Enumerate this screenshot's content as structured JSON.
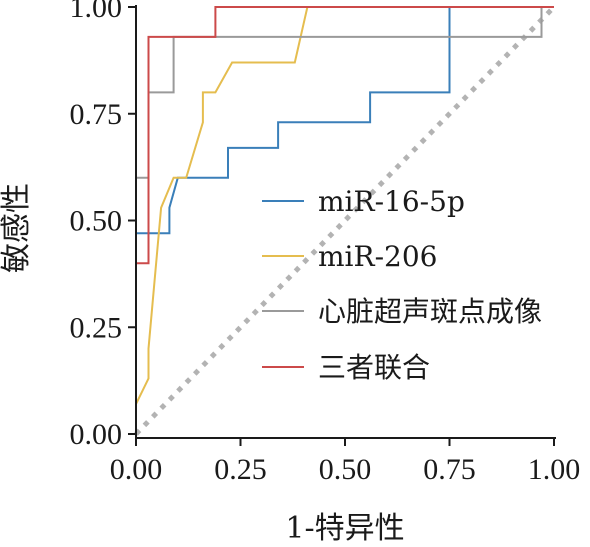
{
  "chart_data": {
    "type": "line",
    "title": "",
    "xlabel": "1-特异性",
    "ylabel": "敏感性",
    "xlim": [
      0,
      1
    ],
    "ylim": [
      0,
      1
    ],
    "xticks": [
      "0.00",
      "0.25",
      "0.50",
      "0.75",
      "1.00"
    ],
    "yticks": [
      "0.00",
      "0.25",
      "0.50",
      "0.75",
      "1.00"
    ],
    "legend_position": "center-right",
    "grid": false,
    "reference_line": {
      "style": "dotted",
      "color": "#b3b3b3",
      "points": [
        [
          0,
          0
        ],
        [
          1,
          1
        ]
      ]
    },
    "series": [
      {
        "name": "miR-16-5p",
        "color": "#3a7fb9",
        "points": [
          [
            0,
            0.47
          ],
          [
            0.08,
            0.47
          ],
          [
            0.08,
            0.53
          ],
          [
            0.1,
            0.6
          ],
          [
            0.22,
            0.6
          ],
          [
            0.22,
            0.67
          ],
          [
            0.34,
            0.67
          ],
          [
            0.34,
            0.73
          ],
          [
            0.56,
            0.73
          ],
          [
            0.56,
            0.8
          ],
          [
            0.75,
            0.8
          ],
          [
            0.75,
            1.0
          ],
          [
            1.0,
            1.0
          ]
        ]
      },
      {
        "name": "miR-206",
        "color": "#e5bd4f",
        "points": [
          [
            0,
            0.07
          ],
          [
            0.03,
            0.13
          ],
          [
            0.03,
            0.2
          ],
          [
            0.06,
            0.53
          ],
          [
            0.09,
            0.6
          ],
          [
            0.12,
            0.6
          ],
          [
            0.16,
            0.73
          ],
          [
            0.16,
            0.8
          ],
          [
            0.19,
            0.8
          ],
          [
            0.23,
            0.87
          ],
          [
            0.38,
            0.87
          ],
          [
            0.41,
            1.0
          ],
          [
            1.0,
            1.0
          ]
        ]
      },
      {
        "name": "心脏超声斑点成像",
        "color": "#9a9a9a",
        "points": [
          [
            0,
            0.4
          ],
          [
            0,
            0.6
          ],
          [
            0.03,
            0.6
          ],
          [
            0.03,
            0.8
          ],
          [
            0.09,
            0.8
          ],
          [
            0.09,
            0.93
          ],
          [
            0.97,
            0.93
          ],
          [
            0.97,
            1.0
          ],
          [
            1.0,
            1.0
          ]
        ]
      },
      {
        "name": "三者联合",
        "color": "#cc4a4a",
        "points": [
          [
            0,
            0.4
          ],
          [
            0.03,
            0.4
          ],
          [
            0.03,
            0.93
          ],
          [
            0.19,
            0.93
          ],
          [
            0.19,
            1.0
          ],
          [
            1.0,
            1.0
          ]
        ]
      }
    ]
  }
}
